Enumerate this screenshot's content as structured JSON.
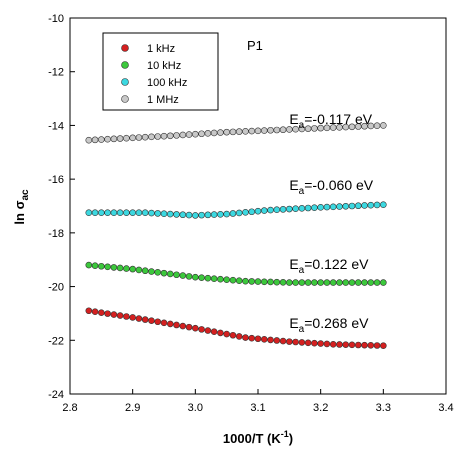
{
  "chart_data": {
    "type": "scatter",
    "panel_label": "P1",
    "xlabel": {
      "main": "1000/T (K",
      "sup": "-1",
      "close": ")"
    },
    "ylabel": {
      "main": "ln σ",
      "sub": "ac"
    },
    "xlim": [
      2.8,
      3.4
    ],
    "ylim": [
      -24,
      -10
    ],
    "x_ticks": [
      "2.8",
      "2.9",
      "3.0",
      "3.1",
      "3.2",
      "3.3",
      "3.4"
    ],
    "y_ticks": [
      "-10",
      "-12",
      "-14",
      "-16",
      "-18",
      "-20",
      "-22",
      "-24"
    ],
    "x_tick_values": [
      2.8,
      2.9,
      3.0,
      3.1,
      3.2,
      3.3,
      3.4
    ],
    "y_tick_values": [
      -10,
      -12,
      -14,
      -16,
      -18,
      -20,
      -22,
      -24
    ],
    "legend_position": "top-left",
    "grid": false,
    "x_range_points": {
      "start": 2.83,
      "end": 3.3,
      "count": 48
    },
    "series": [
      {
        "name": "1 kHz",
        "color": "#d42020",
        "profile_x": [
          2.83,
          2.9,
          3.0,
          3.08,
          3.15,
          3.22,
          3.3
        ],
        "profile_y": [
          -20.9,
          -21.15,
          -21.55,
          -21.9,
          -22.05,
          -22.15,
          -22.2
        ]
      },
      {
        "name": "10 kHz",
        "color": "#3cc83c",
        "profile_x": [
          2.83,
          2.9,
          3.0,
          3.08,
          3.15,
          3.22,
          3.3
        ],
        "profile_y": [
          -19.2,
          -19.35,
          -19.65,
          -19.8,
          -19.85,
          -19.85,
          -19.85
        ]
      },
      {
        "name": "100 kHz",
        "color": "#3cd8e0",
        "profile_x": [
          2.83,
          2.92,
          3.0,
          3.05,
          3.12,
          3.2,
          3.3
        ],
        "profile_y": [
          -17.25,
          -17.25,
          -17.35,
          -17.3,
          -17.15,
          -17.05,
          -16.95
        ]
      },
      {
        "name": "1 MHz",
        "color": "#c8c8c8",
        "profile_x": [
          2.83,
          2.95,
          3.05,
          3.15,
          3.3
        ],
        "profile_y": [
          -14.55,
          -14.4,
          -14.25,
          -14.15,
          -14.0
        ]
      }
    ],
    "annotations": [
      {
        "label": "E",
        "sub": "a",
        "value": "=-0.117 eV",
        "x": 3.15,
        "y": -13.95
      },
      {
        "label": "E",
        "sub": "a",
        "value": "=-0.060 eV",
        "x": 3.15,
        "y": -16.4
      },
      {
        "label": "E",
        "sub": "a",
        "value": "=0.122 eV",
        "x": 3.15,
        "y": -19.35
      },
      {
        "label": "E",
        "sub": "a",
        "value": "=0.268 eV",
        "x": 3.15,
        "y": -21.55
      }
    ]
  }
}
